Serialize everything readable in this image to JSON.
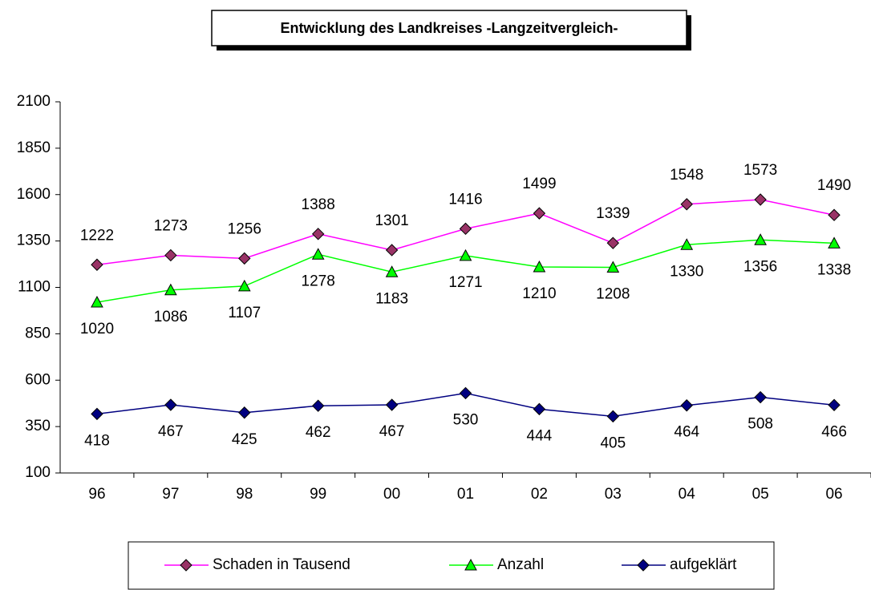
{
  "chart_data": {
    "type": "line",
    "title": "Entwicklung des Landkreises  -Langzeitvergleich-",
    "categories": [
      "96",
      "97",
      "98",
      "99",
      "00",
      "01",
      "02",
      "03",
      "04",
      "05",
      "06"
    ],
    "series": [
      {
        "name": "Schaden in Tausend",
        "color": "#ff00ff",
        "marker_color": "#993366",
        "marker": "diamond",
        "label_position": "above",
        "values": [
          1222,
          1273,
          1256,
          1388,
          1301,
          1416,
          1499,
          1339,
          1548,
          1573,
          1490
        ]
      },
      {
        "name": "Anzahl",
        "color": "#00ff00",
        "marker_color": "#00ff00",
        "marker": "triangle",
        "label_position": "below",
        "values": [
          1020,
          1086,
          1107,
          1278,
          1183,
          1271,
          1210,
          1208,
          1330,
          1356,
          1338
        ]
      },
      {
        "name": "aufgeklärt",
        "color": "#000080",
        "marker_color": "#000080",
        "marker": "diamond",
        "label_position": "below",
        "values": [
          418,
          467,
          425,
          462,
          467,
          530,
          444,
          405,
          464,
          508,
          466
        ]
      }
    ],
    "ylim": [
      100,
      2100
    ],
    "yticks": [
      100,
      350,
      600,
      850,
      1100,
      1350,
      1600,
      1850,
      2100
    ],
    "grid": false,
    "legend": "bottom"
  }
}
